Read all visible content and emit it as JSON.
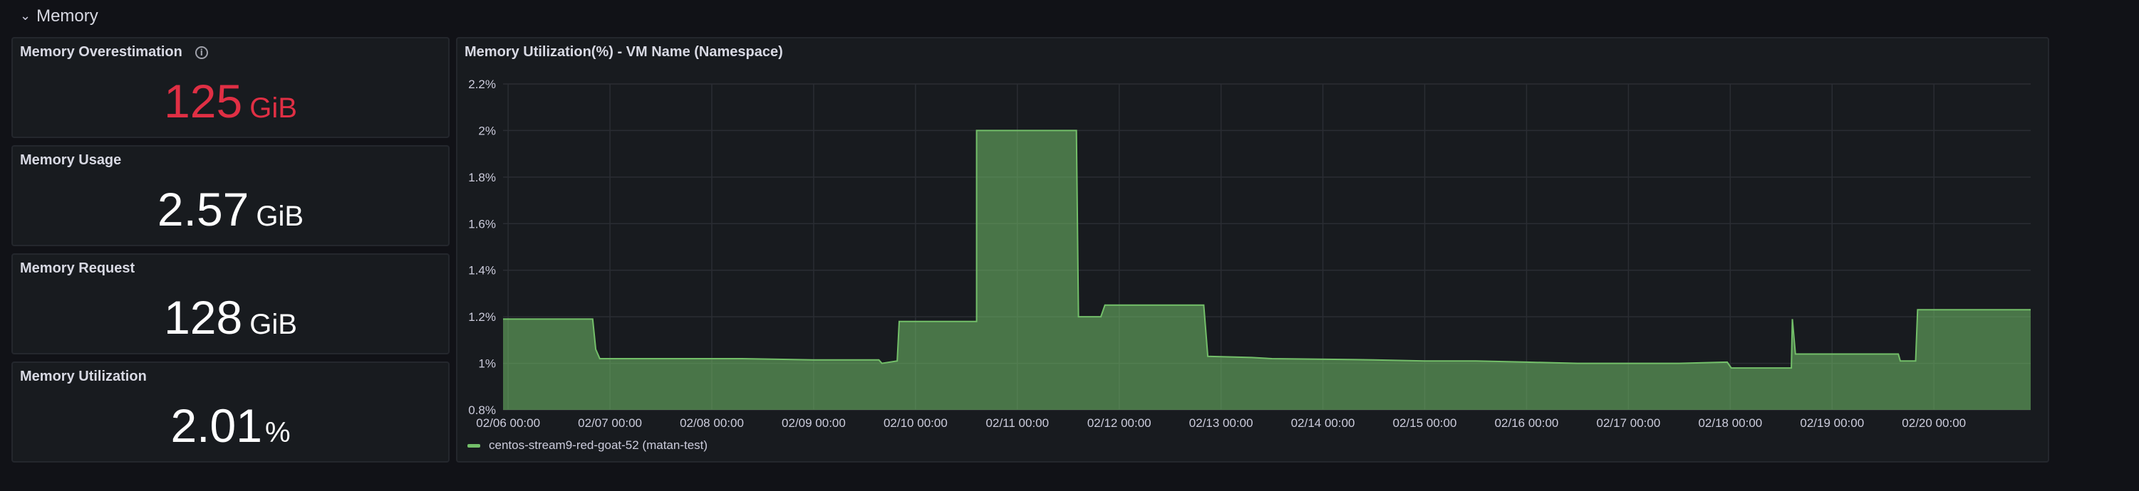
{
  "row": {
    "title": "Memory"
  },
  "stats": [
    {
      "title": "Memory Overestimation",
      "value": "125",
      "unit": "GiB",
      "has_info": true,
      "color": "#e02f44"
    },
    {
      "title": "Memory Usage",
      "value": "2.57",
      "unit": "GiB",
      "has_info": false,
      "color": "#ffffff"
    },
    {
      "title": "Memory Request",
      "value": "128",
      "unit": "GiB",
      "has_info": false,
      "color": "#ffffff"
    },
    {
      "title": "Memory Utilization",
      "value": "2.01",
      "unit": "%",
      "has_info": false,
      "color": "#ffffff"
    }
  ],
  "chart": {
    "title": "Memory Utilization(%) - VM Name (Namespace)",
    "legend": "centos-stream9-red-goat-52 (matan-test)"
  },
  "chart_data": {
    "type": "area",
    "title": "Memory Utilization(%) - VM Name (Namespace)",
    "xlabel": "",
    "ylabel": "",
    "ylim": [
      0.8,
      2.2
    ],
    "xlim": [
      -0.05,
      14.95
    ],
    "yticks": [
      "0.8%",
      "1%",
      "1.2%",
      "1.4%",
      "1.6%",
      "1.8%",
      "2%",
      "2.2%"
    ],
    "ytick_values": [
      0.8,
      1.0,
      1.2,
      1.4,
      1.6,
      1.8,
      2.0,
      2.2
    ],
    "xticks": [
      "02/06 00:00",
      "02/07 00:00",
      "02/08 00:00",
      "02/09 00:00",
      "02/10 00:00",
      "02/11 00:00",
      "02/12 00:00",
      "02/13 00:00",
      "02/14 00:00",
      "02/15 00:00",
      "02/16 00:00",
      "02/17 00:00",
      "02/18 00:00",
      "02/19 00:00",
      "02/20 00:00"
    ],
    "xtick_values": [
      0,
      1,
      2,
      3,
      4,
      5,
      6,
      7,
      8,
      9,
      10,
      11,
      12,
      13,
      14
    ],
    "grid": true,
    "legend_position": "bottom-left",
    "series": [
      {
        "name": "centos-stream9-red-goat-52 (matan-test)",
        "color": "#73bf69",
        "x": [
          -0.05,
          0.83,
          0.86,
          0.9,
          2.0,
          2.3,
          3.0,
          3.64,
          3.67,
          3.82,
          3.84,
          4.6,
          4.6,
          5.58,
          5.6,
          5.82,
          5.86,
          6.83,
          6.87,
          7.3,
          7.5,
          8.5,
          9.0,
          9.5,
          10.0,
          10.5,
          11.0,
          11.5,
          11.97,
          12.01,
          12.6,
          12.61,
          12.64,
          12.67,
          13.65,
          13.67,
          13.82,
          13.84,
          14.95
        ],
        "y": [
          1.19,
          1.19,
          1.06,
          1.02,
          1.02,
          1.02,
          1.015,
          1.015,
          1.0,
          1.01,
          1.18,
          1.18,
          2.0,
          2.0,
          1.2,
          1.2,
          1.25,
          1.25,
          1.03,
          1.025,
          1.02,
          1.015,
          1.01,
          1.01,
          1.005,
          1.0,
          1.0,
          1.0,
          1.005,
          0.98,
          0.98,
          1.19,
          1.04,
          1.04,
          1.04,
          1.01,
          1.01,
          1.23,
          1.23
        ]
      }
    ]
  }
}
